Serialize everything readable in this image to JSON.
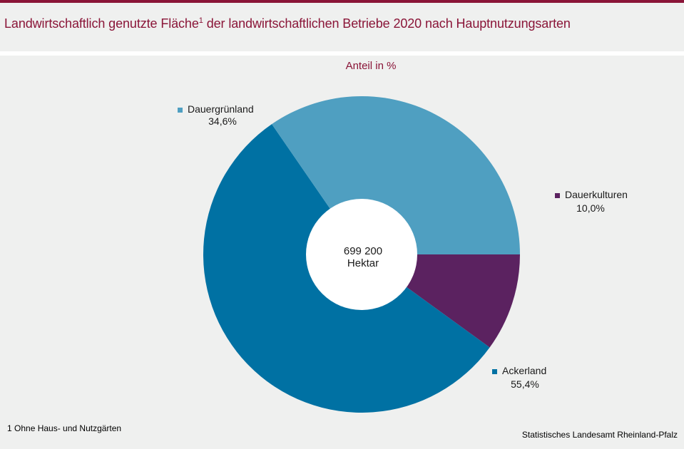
{
  "title": {
    "text": "Landwirtschaftlich genutzte Fläche",
    "footnote_mark": "1",
    "text_after": " der landwirtschaftlichen Betriebe 2020 nach Hauptnutzungsarten"
  },
  "subtitle": "Anteil in %",
  "center_label": {
    "line1": "699 200",
    "line2": "Hektar"
  },
  "footnote": {
    "mark": "1",
    "text": " Ohne Haus- und Nutzgärten"
  },
  "source": "Statistisches Landesamt  Rheinland-Pfalz",
  "colors": {
    "Ackerland": "#0071a3",
    "Dauergrünland": "#4f9fc1",
    "Dauerkulturen": "#5b2260",
    "title": "#8a1538",
    "background": "#eff0ef"
  },
  "chart_data": {
    "type": "pie",
    "variant": "donut",
    "categories": [
      "Dauerkulturen",
      "Ackerland",
      "Dauergrünland"
    ],
    "values": [
      10.0,
      55.4,
      34.6
    ],
    "value_labels": [
      "10,0%",
      "55,4%",
      "34,6%"
    ],
    "total": "699 200 Hektar",
    "unit": "%"
  }
}
